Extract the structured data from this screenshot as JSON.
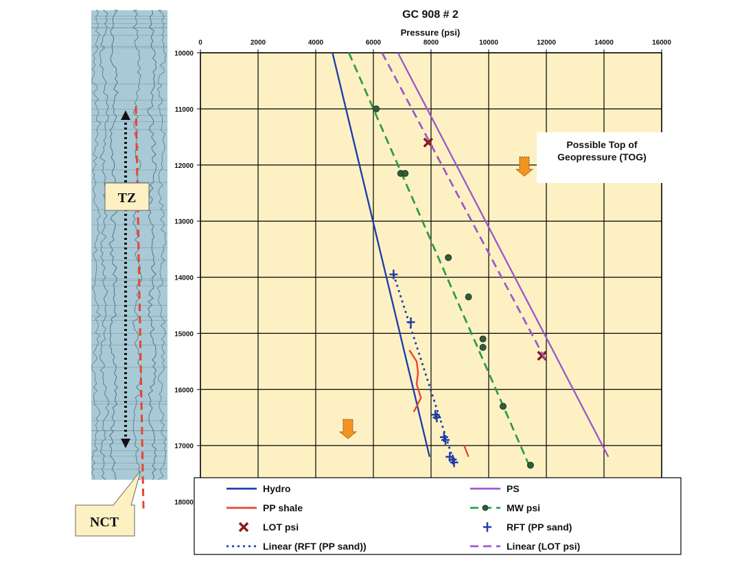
{
  "chart_data": {
    "type": "line",
    "title": "GC 908 # 2",
    "xlabel": "Pressure (psi)",
    "ylabel": "",
    "x_ticks": [
      "0",
      "2000",
      "4000",
      "6000",
      "8000",
      "10000",
      "12000",
      "14000",
      "16000"
    ],
    "y_ticks": [
      "10000",
      "11000",
      "12000",
      "13000",
      "14000",
      "15000",
      "16000",
      "17000",
      "18000"
    ],
    "xlim": [
      0,
      16000
    ],
    "ylim": [
      10000,
      18000
    ],
    "y_reversed": true,
    "grid": true,
    "legend_position": "bottom",
    "series": [
      {
        "name": "Hydro",
        "kind": "line",
        "color": "#1f3ea8",
        "style": "solid",
        "points": [
          [
            4580,
            10000
          ],
          [
            7950,
            17200
          ]
        ]
      },
      {
        "name": "PS",
        "kind": "line",
        "color": "#9b59c9",
        "style": "solid",
        "points": [
          [
            6850,
            10000
          ],
          [
            14150,
            17200
          ]
        ]
      },
      {
        "name": "PP shale",
        "kind": "line",
        "color": "#e8452a",
        "style": "solid",
        "points": [
          [
            7250,
            15300
          ],
          [
            7500,
            15500
          ],
          [
            7550,
            15700
          ],
          [
            7500,
            15900
          ],
          [
            7650,
            16150
          ],
          [
            7400,
            16400
          ]
        ],
        "extra_points": [
          [
            9150,
            17000
          ],
          [
            9300,
            17200
          ]
        ]
      },
      {
        "name": "MW psi",
        "kind": "line-marker",
        "color": "#2e9a4a",
        "marker_color": "#2f5d3a",
        "style": "dashed",
        "points": [
          [
            5150,
            10000
          ],
          [
            11400,
            17350
          ]
        ],
        "markers": [
          [
            6100,
            11000
          ],
          [
            6950,
            12150
          ],
          [
            7100,
            12150
          ],
          [
            8600,
            13650
          ],
          [
            9300,
            14350
          ],
          [
            9800,
            15100
          ],
          [
            9800,
            15250
          ],
          [
            10500,
            16300
          ],
          [
            11450,
            17350
          ]
        ]
      },
      {
        "name": "LOT psi",
        "kind": "marker",
        "color": "#8b1a1a",
        "marker": "x",
        "markers": [
          [
            7900,
            11600
          ],
          [
            11850,
            15400
          ]
        ]
      },
      {
        "name": "RFT (PP sand)",
        "kind": "marker",
        "color": "#1f3ea8",
        "marker": "+",
        "markers": [
          [
            6700,
            13950
          ],
          [
            7300,
            14800
          ],
          [
            8150,
            16450
          ],
          [
            8200,
            16500
          ],
          [
            8450,
            16850
          ],
          [
            8500,
            16900
          ],
          [
            8650,
            17200
          ],
          [
            8750,
            17250
          ],
          [
            8800,
            17300
          ]
        ]
      },
      {
        "name": "Linear (RFT (PP sand))",
        "kind": "line",
        "color": "#1f3ea8",
        "style": "dotted",
        "points": [
          [
            6700,
            13950
          ],
          [
            8800,
            17300
          ]
        ]
      },
      {
        "name": "Linear (LOT psi)",
        "kind": "line",
        "color": "#9b59c9",
        "style": "dashed",
        "points": [
          [
            6300,
            10000
          ],
          [
            11950,
            15450
          ]
        ]
      }
    ],
    "annotations": [
      {
        "text_lines": [
          "Possible Top of",
          "Geopressure (TOG)"
        ]
      }
    ]
  },
  "callouts": {
    "tz": "TZ",
    "nct": "NCT"
  },
  "legend": {
    "items": [
      {
        "label": "Hydro",
        "series": "Hydro"
      },
      {
        "label": "PS",
        "series": "PS"
      },
      {
        "label": "PP shale",
        "series": "PP shale"
      },
      {
        "label": "MW psi",
        "series": "MW psi"
      },
      {
        "label": "LOT psi",
        "series": "LOT psi"
      },
      {
        "label": "RFT (PP sand)",
        "series": "RFT (PP sand)"
      },
      {
        "label": "Linear (RFT (PP sand))",
        "series": "Linear (RFT (PP sand))"
      },
      {
        "label": "Linear (LOT psi)",
        "series": "Linear (LOT psi)"
      }
    ]
  },
  "colors": {
    "plot_bg": "#fdf1c4",
    "grid": "#000000",
    "log_bg": "#a9c9d6",
    "nct_line": "#e8452a",
    "callout_bg": "#fdf1c4",
    "tog_arrow": "#f39420"
  }
}
